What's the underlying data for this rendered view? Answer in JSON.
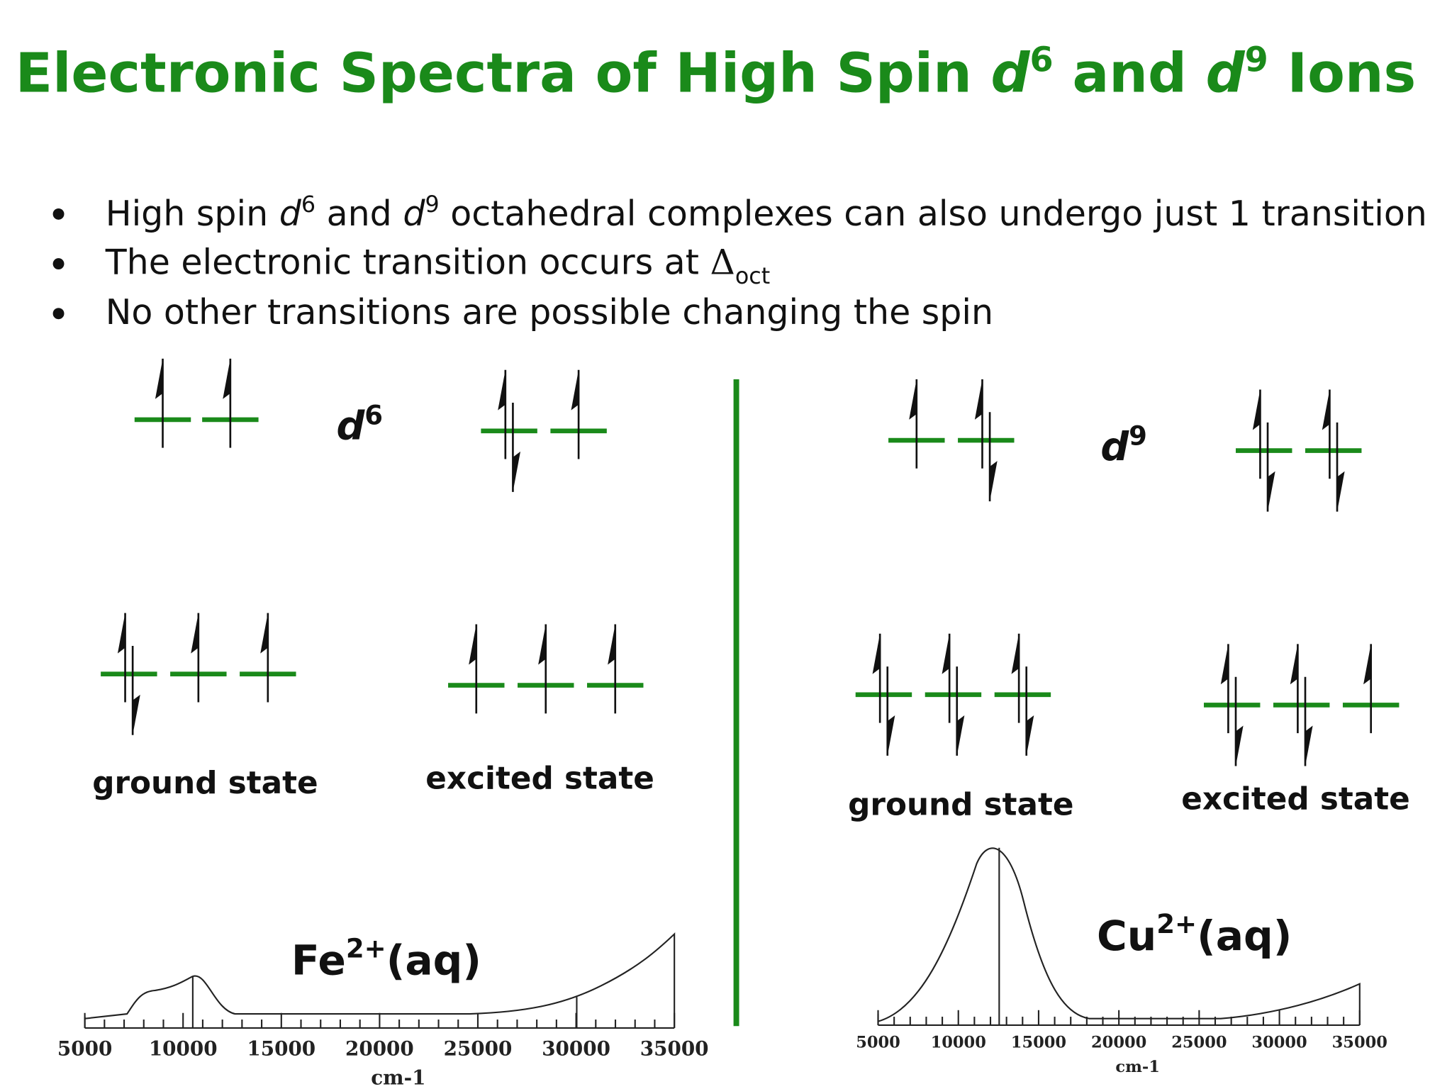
{
  "title": [
    "Electronic Spectra of High Spin ",
    "d",
    "6",
    " and ",
    "d",
    "9",
    " Ions"
  ],
  "bullets": [
    [
      "High spin ",
      "d",
      "6",
      " and ",
      "d",
      "9",
      " octahedral complexes can also undergo just 1 transition"
    ],
    [
      "The electronic transition occurs at ",
      "Δ",
      "oct"
    ],
    [
      "No other transitions are possible changing the spin"
    ]
  ],
  "panels": [
    {
      "config": [
        "d",
        "6"
      ],
      "ground": "ground state",
      "excited": "excited state",
      "spectrum": {
        "label": [
          "Fe",
          "2+",
          "(aq)"
        ],
        "xlim": [
          5000,
          35000
        ],
        "xticks": [
          5000,
          10000,
          15000,
          20000,
          25000,
          30000,
          35000
        ],
        "xlabel": "cm-1"
      }
    },
    {
      "config": [
        "d",
        "9"
      ],
      "ground": "ground state",
      "excited": "excited state",
      "spectrum": {
        "label": [
          "Cu",
          "2+",
          "(aq)"
        ],
        "xlim": [
          5000,
          35000
        ],
        "xticks": [
          5000,
          10000,
          15000,
          20000,
          25000,
          30000,
          35000
        ],
        "xlabel": "cm-1"
      }
    }
  ]
}
